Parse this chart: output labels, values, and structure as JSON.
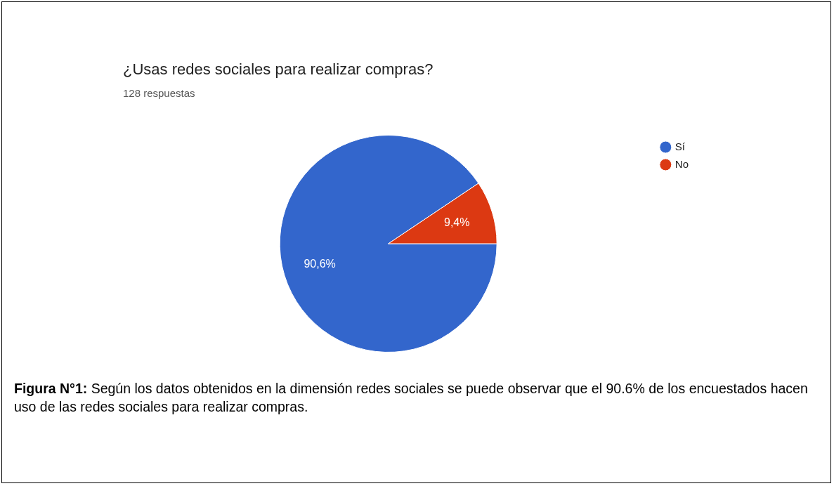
{
  "chart_data": {
    "type": "pie",
    "title": "¿Usas redes sociales para realizar compras?",
    "subtitle": "128 respuestas",
    "categories": [
      "Sí",
      "No"
    ],
    "values": [
      90.6,
      9.4
    ],
    "colors": [
      "#3366cc",
      "#dc3912"
    ],
    "value_labels": [
      "90,6%",
      "9,4%"
    ],
    "legend": "top right",
    "annotations": [
      "Figura N°1: Según los datos obtenidos en la dimensión redes sociales se puede observar que el 90.6% de los encuestados hacen uso de las redes sociales para realizar compras."
    ]
  }
}
